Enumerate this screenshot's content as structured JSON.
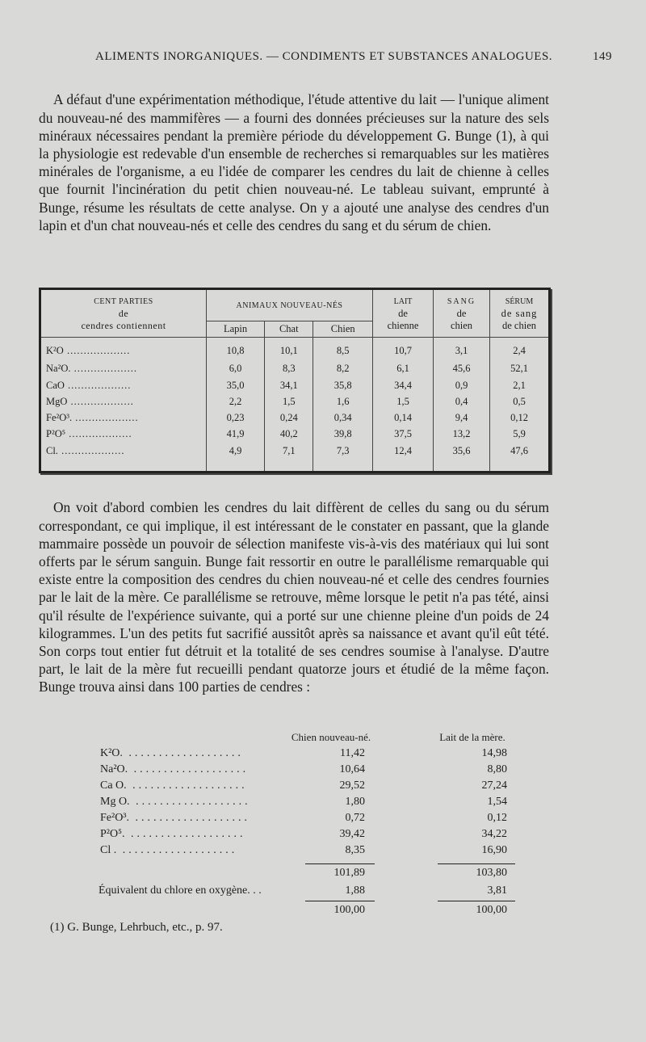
{
  "header": {
    "title": "ALIMENTS INORGANIQUES. — CONDIMENTS ET SUBSTANCES ANALOGUES.",
    "page": "149"
  },
  "paragraphs": [
    "A défaut d'une expérimentation méthodique, l'étude attentive du lait — l'unique aliment du nouveau-né des mammifères — a fourni des données précieuses sur la nature des sels minéraux nécessaires pendant la première période du développement G. Bunge (1), à qui la physiologie est redevable d'un ensemble de recherches si remarquables sur les matières minérales de l'organisme, a eu l'idée de comparer les cendres du lait de chienne à celles que fournit l'incinération du petit chien nouveau-né. Le tableau suivant, emprunté à Bunge, résume les résultats de cette analyse. On y a ajouté une analyse des cendres d'un lapin et d'un chat nouveau-nés et celle des cendres du sang et du sérum de chien.",
    "On voit d'abord combien les cendres du lait diffèrent de celles du sang ou du sérum correspondant, ce qui implique, il est intéressant de le constater en passant, que la glande mammaire possède un pouvoir de sélection manifeste vis-à-vis des matériaux qui lui sont offerts par le sérum sanguin. Bunge fait ressortir en outre le parallélisme remarquable qui existe entre la composition des cendres du chien nouveau-né et celle des cendres fournies par le lait de la mère. Ce parallélisme se retrouve, même lorsque le petit n'a pas tété, ainsi qu'il résulte de l'expérience suivante, qui a porté sur une chienne pleine d'un poids de 24 kilogrammes. L'un des petits fut sacrifié aussitôt après sa naissance et avant qu'il eût tété. Son corps tout entier fut détruit et la totalité de ses cendres soumise à l'analyse. D'autre part, le lait de la mère fut recueilli pendant quatorze jours et étudié de la même façon. Bunge trouva ainsi dans 100 parties de cendres :"
  ],
  "table1": {
    "headers": {
      "first": [
        "CENT PARTIES",
        "de",
        "cendres contiennent"
      ],
      "group": "ANIMAUX NOUVEAU-NÉS",
      "sub": [
        "Lapin",
        "Chat",
        "Chien"
      ],
      "lait": [
        "LAIT",
        "de",
        "chienne"
      ],
      "sang": [
        "SANG",
        "de",
        "chien"
      ],
      "serum": [
        "SÉRUM",
        "de sang",
        "de chien"
      ]
    },
    "rows": [
      {
        "label": "K²O",
        "values": [
          "10,8",
          "10,1",
          "8,5",
          "10,7",
          "3,1",
          "2,4"
        ]
      },
      {
        "label": "Na²O.",
        "values": [
          "6,0",
          "8,3",
          "8,2",
          "6,1",
          "45,6",
          "52,1"
        ]
      },
      {
        "label": "CaO",
        "values": [
          "35,0",
          "34,1",
          "35,8",
          "34,4",
          "0,9",
          "2,1"
        ]
      },
      {
        "label": "MgO",
        "values": [
          "2,2",
          "1,5",
          "1,6",
          "1,5",
          "0,4",
          "0,5"
        ]
      },
      {
        "label": "Fe²O³.",
        "values": [
          "0,23",
          "0,24",
          "0,34",
          "0,14",
          "9,4",
          "0,12"
        ]
      },
      {
        "label": "P²O⁵",
        "values": [
          "41,9",
          "40,2",
          "39,8",
          "37,5",
          "13,2",
          "5,9"
        ]
      },
      {
        "label": "Cl.",
        "values": [
          "4,9",
          "7,1",
          "7,3",
          "12,4",
          "35,6",
          "47,6"
        ]
      }
    ]
  },
  "table2": {
    "headers": [
      "Chien nouveau-né.",
      "Lait de la mère."
    ],
    "rows": [
      {
        "label": "K²O.",
        "values": [
          "11,42",
          "14,98"
        ]
      },
      {
        "label": "Na²O.",
        "values": [
          "10,64",
          "8,80"
        ]
      },
      {
        "label": "Ca O.",
        "values": [
          "29,52",
          "27,24"
        ]
      },
      {
        "label": "Mg O.",
        "values": [
          "1,80",
          "1,54"
        ]
      },
      {
        "label": "Fe²O³.",
        "values": [
          "0,72",
          "0,12"
        ]
      },
      {
        "label": "P²O⁵.",
        "values": [
          "39,42",
          "34,22"
        ]
      },
      {
        "label": "Cl .",
        "values": [
          "8,35",
          "16,90"
        ]
      }
    ],
    "subtotal": [
      "101,89",
      "103,80"
    ],
    "equiv": {
      "label": "Équivalent du chlore en oxygène. . .",
      "values": [
        "1,88",
        "3,81"
      ]
    },
    "total": [
      "100,00",
      "100,00"
    ]
  },
  "footnote": "(1) G. Bunge, Lehrbuch, etc., p. 97."
}
